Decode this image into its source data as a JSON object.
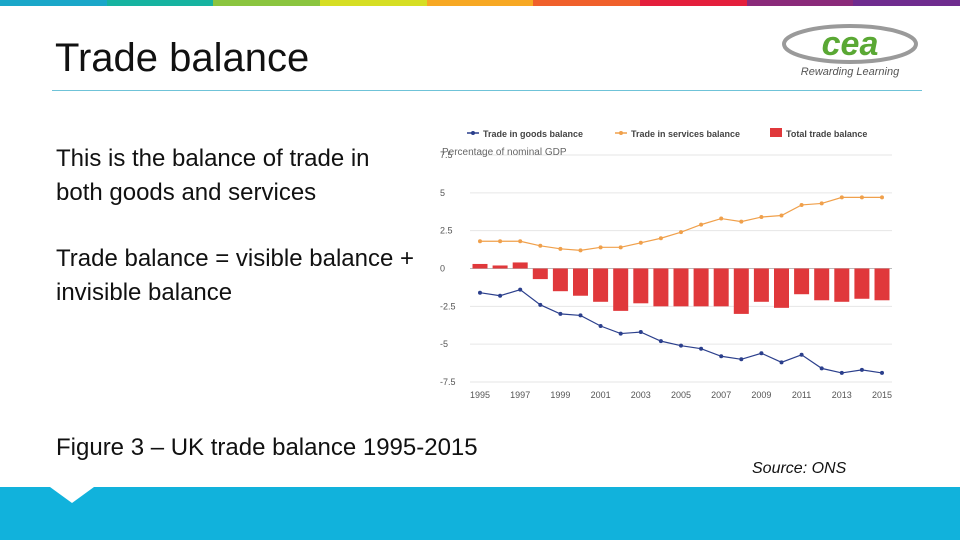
{
  "slide": {
    "title": "Trade balance",
    "paragraph1": "This is the balance of trade in both goods and services",
    "paragraph2": "Trade balance = visible balance + invisible balance",
    "caption": "Figure 3 – UK trade balance 1995-2015",
    "source": "Source: ONS",
    "logo_text": "cea",
    "logo_tagline": "Rewarding Learning",
    "accent_colors": [
      "#1aa7c9",
      "#16b3a0",
      "#8bc53f",
      "#d6de23",
      "#f7a823",
      "#f0602b",
      "#e41f3c",
      "#8a2a7a",
      "#6f2c8f"
    ]
  },
  "chart_data": {
    "type": "line",
    "subtitle": "Percentage of nominal GDP",
    "x": [
      1995,
      1996,
      1997,
      1998,
      1999,
      2000,
      2001,
      2002,
      2003,
      2004,
      2005,
      2006,
      2007,
      2008,
      2009,
      2010,
      2011,
      2012,
      2013,
      2014,
      2015
    ],
    "xticks": [
      "1995",
      "1997",
      "1999",
      "2001",
      "2003",
      "2005",
      "2007",
      "2009",
      "2011",
      "2013",
      "2015"
    ],
    "yticks": [
      "7.5",
      "5",
      "2.5",
      "0",
      "-2.5",
      "-5",
      "-7.5"
    ],
    "ylim": [
      -7.5,
      7.5
    ],
    "legend_position": "top",
    "series": [
      {
        "name": "Trade in goods balance",
        "type": "line",
        "color": "#2b3f8c",
        "values": [
          -1.6,
          -1.8,
          -1.4,
          -2.4,
          -3.0,
          -3.1,
          -3.8,
          -4.3,
          -4.2,
          -4.8,
          -5.1,
          -5.3,
          -5.8,
          -6.0,
          -5.6,
          -6.2,
          -5.7,
          -6.6,
          -6.9,
          -6.7,
          -6.9
        ]
      },
      {
        "name": "Trade in services balance",
        "type": "line",
        "color": "#f0a04b",
        "values": [
          1.8,
          1.8,
          1.8,
          1.5,
          1.3,
          1.2,
          1.4,
          1.4,
          1.7,
          2.0,
          2.4,
          2.9,
          3.3,
          3.1,
          3.4,
          3.5,
          4.2,
          4.3,
          4.7,
          4.7,
          4.7
        ]
      },
      {
        "name": "Total trade balance",
        "type": "bar",
        "color": "#e0383b",
        "values": [
          0.3,
          0.2,
          0.4,
          -0.7,
          -1.5,
          -1.8,
          -2.2,
          -2.8,
          -2.3,
          -2.5,
          -2.5,
          -2.5,
          -2.5,
          -3.0,
          -2.2,
          -2.6,
          -1.7,
          -2.1,
          -2.2,
          -2.0,
          -2.1
        ]
      }
    ]
  }
}
